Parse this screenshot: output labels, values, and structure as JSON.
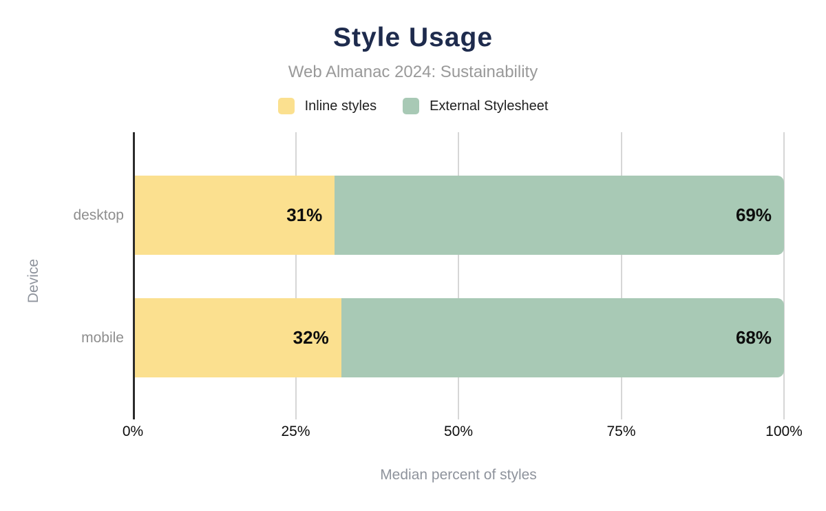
{
  "page": {
    "background": "#ffffff"
  },
  "chart_data": {
    "type": "bar",
    "orientation": "horizontal",
    "stacked": true,
    "title": "Style Usage",
    "subtitle": "Web Almanac 2024: Sustainability",
    "categories": [
      "desktop",
      "mobile"
    ],
    "series": [
      {
        "name": "Inline styles",
        "color": "#fbe08f",
        "values": [
          31,
          32
        ]
      },
      {
        "name": "External Stylesheet",
        "color": "#a8c9b5",
        "values": [
          69,
          68
        ]
      }
    ],
    "value_suffix": "%",
    "xlabel": "Median percent of styles",
    "ylabel": "Device",
    "xlim": [
      0,
      100
    ],
    "xticks": [
      "0%",
      "25%",
      "50%",
      "75%",
      "100%"
    ],
    "grid": true,
    "legend_position": "top",
    "colors": {
      "title": "#1e2b4d",
      "subtitle": "#999999",
      "axis_label": "#8e939c",
      "category_label": "#8e8e8e",
      "tick_label": "#0d0d0d",
      "value_label": "#0d0d0d",
      "gridline": "#d6d6d6",
      "axis_line": "#2b2b2b"
    }
  }
}
